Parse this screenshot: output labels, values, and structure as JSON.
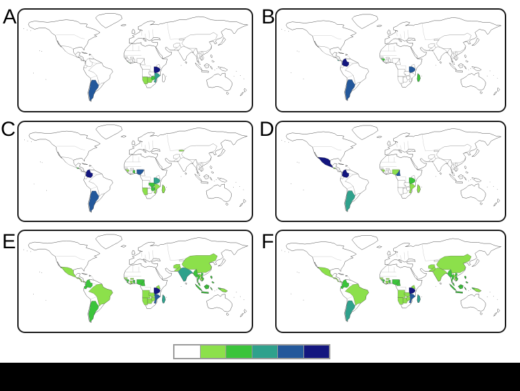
{
  "figure": {
    "background": "#ffffff",
    "bottom_bar_color": "#000000"
  },
  "legend": {
    "colors": [
      "#ffffff",
      "#8ce04b",
      "#3bc43b",
      "#2fa18c",
      "#23589b",
      "#13167f"
    ],
    "levels": [
      0,
      1,
      2,
      3,
      4,
      5
    ],
    "border_color": "#9a9a9a"
  },
  "panels": [
    {
      "label": "A",
      "highlighted": {
        "argentina": 4,
        "liberia": 2,
        "namibia": 1,
        "botswana": 1,
        "zimbabwe": 2,
        "mozambique": 3,
        "tanzania": 5
      }
    },
    {
      "label": "B",
      "highlighted": {
        "colombia": 5,
        "costa_rica": 3,
        "argentina": 4,
        "guinea": 2,
        "tanzania": 4,
        "madagascar": 2
      }
    },
    {
      "label": "C",
      "highlighted": {
        "colombia": 5,
        "guatemala": 2,
        "argentina": 4,
        "guinea": 1,
        "ghana": 2,
        "nigeria": 4,
        "kyrgyzstan": 1,
        "namibia": 1,
        "zambia": 2,
        "zimbabwe": 2,
        "mozambique": 1,
        "tanzania": 3,
        "madagascar": 1
      }
    },
    {
      "label": "D",
      "highlighted": {
        "mexico": 5,
        "guatemala": 1,
        "colombia": 5,
        "argentina": 3,
        "guinea": 1,
        "nigeria": 1,
        "cameroon": 4,
        "tanzania": 2,
        "mozambique": 1,
        "madagascar": 1
      }
    },
    {
      "label": "E",
      "highlighted": {
        "mexico": 1,
        "guatemala": 1,
        "honduras": 1,
        "nicaragua": 1,
        "costa_rica": 1,
        "panama": 1,
        "colombia": 2,
        "ecuador": 2,
        "brazil": 1,
        "argentina": 2,
        "senegal": 1,
        "guinea": 2,
        "sierra_leone": 2,
        "liberia": 1,
        "ivory_coast": 1,
        "ghana": 2,
        "burkina_faso": 1,
        "nigeria": 2,
        "cameroon": 2,
        "angola": 1,
        "namibia": 1,
        "botswana": 1,
        "zambia": 1,
        "zimbabwe": 1,
        "kenya": 1,
        "tanzania": 5,
        "mozambique": 4,
        "madagascar": 3,
        "afghanistan": 1,
        "pakistan": 1,
        "india": 3,
        "china": 1,
        "myanmar": 2,
        "thailand": 2,
        "laos": 1,
        "vietnam": 2,
        "cambodia": 1,
        "malaysia": 2,
        "indonesia": 2,
        "philippines": 2,
        "papua_new_guinea": 1
      }
    },
    {
      "label": "F",
      "highlighted": {
        "mexico": 1,
        "guatemala": 1,
        "honduras": 1,
        "nicaragua": 1,
        "costa_rica": 1,
        "panama": 1,
        "colombia": 2,
        "ecuador": 2,
        "brazil": 1,
        "argentina": 3,
        "senegal": 1,
        "guinea": 2,
        "sierra_leone": 2,
        "liberia": 1,
        "ivory_coast": 1,
        "ghana": 2,
        "burkina_faso": 1,
        "nigeria": 2,
        "cameroon": 2,
        "angola": 1,
        "namibia": 1,
        "botswana": 1,
        "zambia": 1,
        "zimbabwe": 1,
        "kenya": 1,
        "tanzania": 5,
        "mozambique": 4,
        "madagascar": 3,
        "afghanistan": 1,
        "pakistan": 1,
        "india": 1,
        "china": 1,
        "myanmar": 2,
        "thailand": 2,
        "laos": 1,
        "vietnam": 2,
        "cambodia": 1,
        "malaysia": 2,
        "indonesia": 2,
        "philippines": 2,
        "papua_new_guinea": 1
      }
    }
  ]
}
